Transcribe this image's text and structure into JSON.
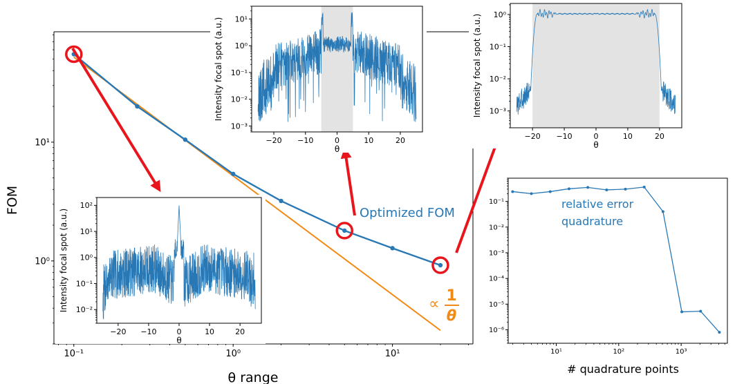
{
  "colors": {
    "series": "#2878b5",
    "proportional": "#f28a16",
    "highlight": "#e8161c",
    "shade": "#e3e3e3",
    "axis": "#000000"
  },
  "chart_data": [
    {
      "id": "main",
      "type": "line",
      "scale": "loglog",
      "title": "",
      "xlabel": "θ range",
      "ylabel": "FOM",
      "xlim": [
        0.075,
        32
      ],
      "ylim": [
        0.2,
        85
      ],
      "xticks": [
        0.1,
        1,
        10
      ],
      "xtick_labels": [
        "10⁻¹",
        "10⁰",
        "10¹"
      ],
      "yticks": [
        1,
        10
      ],
      "ytick_labels": [
        "10⁰",
        "10¹"
      ],
      "series": [
        {
          "name": "Optimized FOM",
          "x": [
            0.1,
            0.25,
            0.5,
            1,
            2,
            5,
            10,
            20
          ],
          "y": [
            55,
            20,
            10.5,
            5.4,
            3.2,
            1.8,
            1.28,
            0.92
          ]
        },
        {
          "name": "∝ 1/θ",
          "x": [
            0.1,
            20
          ],
          "y": [
            52,
            0.26
          ]
        }
      ],
      "annotations": {
        "series_label": "Optimized FOM",
        "prop_symbol": "∝",
        "prop_num": "1",
        "prop_den": "θ"
      },
      "highlighted_points": [
        {
          "x": 0.1,
          "y": 55
        },
        {
          "x": 5,
          "y": 1.8
        },
        {
          "x": 20,
          "y": 0.92
        }
      ]
    },
    {
      "id": "inset_low",
      "type": "line",
      "scale": "semilogy",
      "xlabel": "θ",
      "ylabel": "Intensity focal spot (a.u.)",
      "xlim": [
        -27,
        27
      ],
      "ylim": [
        0.003,
        200
      ],
      "xticks": [
        -20,
        -10,
        0,
        10,
        20
      ],
      "xtick_labels": [
        "−20",
        "−10",
        "0",
        "10",
        "20"
      ],
      "yticks": [
        0.01,
        0.1,
        1,
        10,
        100
      ],
      "ytick_labels": [
        "10⁻²",
        "10⁻¹",
        "10⁰",
        "10¹",
        "10²"
      ],
      "shaded_range": [
        0,
        0
      ],
      "description": "speckle pattern between 1e-2 and 1, single peak ~1e2 at θ=0"
    },
    {
      "id": "inset_mid",
      "type": "line",
      "scale": "semilogy",
      "xlabel": "θ",
      "ylabel": "Intensity focal spot (a.u.)",
      "xlim": [
        -27,
        27
      ],
      "ylim": [
        0.0006,
        30
      ],
      "xticks": [
        -20,
        -10,
        0,
        10,
        20
      ],
      "xtick_labels": [
        "−20",
        "−10",
        "0",
        "10",
        "20"
      ],
      "yticks": [
        0.001,
        0.01,
        0.1,
        1,
        10
      ],
      "ytick_labels": [
        "10⁻³",
        "10⁻²",
        "10⁻¹",
        "10⁰",
        "10¹"
      ],
      "shaded_range": [
        -5,
        5
      ]
    },
    {
      "id": "inset_high",
      "type": "line",
      "scale": "semilogy",
      "xlabel": "θ",
      "ylabel": "Intensity focal spot (a.u.)",
      "xlim": [
        -27,
        27
      ],
      "ylim": [
        0.0003,
        2.2
      ],
      "xticks": [
        -20,
        -10,
        0,
        10,
        20
      ],
      "xtick_labels": [
        "−20",
        "−10",
        "0",
        "10",
        "20"
      ],
      "yticks": [
        0.001,
        0.01,
        0.1,
        1
      ],
      "ytick_labels": [
        "10⁻³",
        "10⁻²",
        "10⁻¹",
        "10⁰"
      ],
      "shaded_range": [
        -20,
        20
      ]
    },
    {
      "id": "error",
      "type": "line",
      "scale": "loglog",
      "xlabel": "# quadrature points",
      "ylabel": "",
      "xlim": [
        1.7,
        5500
      ],
      "ylim": [
        3e-07,
        0.8
      ],
      "xticks": [
        10,
        100,
        1000
      ],
      "xtick_labels": [
        "10¹",
        "10²",
        "10³"
      ],
      "yticks": [
        1e-06,
        1e-05,
        0.0001,
        0.001,
        0.01,
        0.1
      ],
      "ytick_labels": [
        "10⁻⁶",
        "10⁻⁵",
        "10⁻⁴",
        "10⁻³",
        "10⁻²",
        "10⁻¹"
      ],
      "annotation_lines": [
        "relative error",
        "quadrature"
      ],
      "series": [
        {
          "name": "relative error quadrature",
          "x": [
            2,
            4,
            8,
            16,
            32,
            64,
            128,
            256,
            512,
            1024,
            2048,
            4096
          ],
          "y": [
            0.24,
            0.2,
            0.24,
            0.31,
            0.35,
            0.28,
            0.3,
            0.36,
            0.04,
            5e-06,
            5.3e-06,
            8e-07
          ]
        }
      ]
    }
  ]
}
